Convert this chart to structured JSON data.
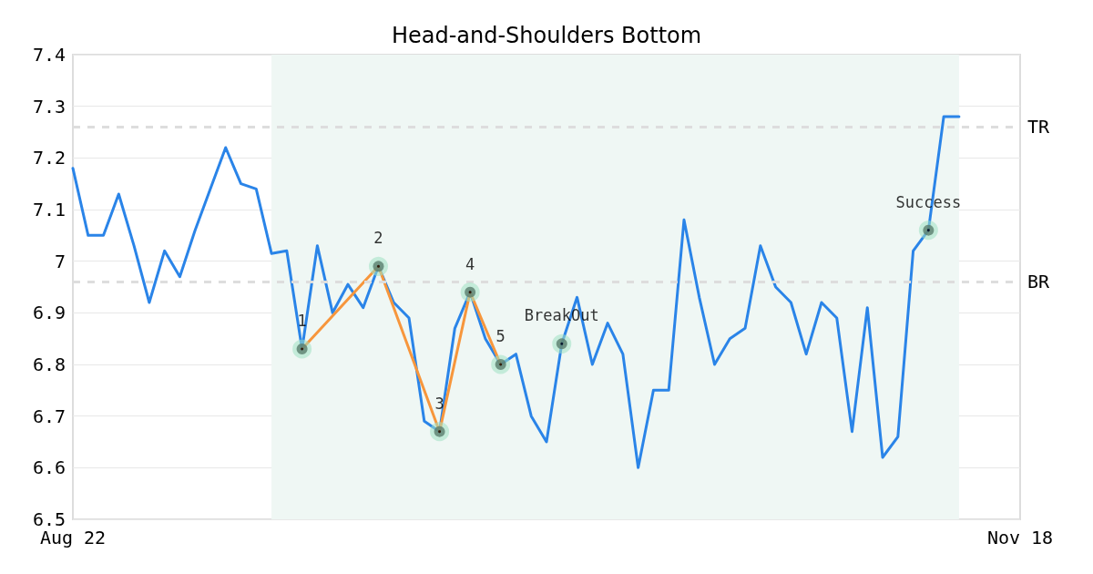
{
  "chart_data": {
    "type": "line",
    "title": "Head-and-Shoulders Bottom",
    "categories": [
      "Aug 22",
      null,
      null,
      null,
      null,
      null,
      null,
      null,
      null,
      null,
      null,
      null,
      null,
      null,
      null,
      null,
      null,
      null,
      null,
      null,
      null,
      null,
      null,
      null,
      null,
      null,
      null,
      null,
      null,
      null,
      null,
      null,
      null,
      null,
      null,
      null,
      null,
      null,
      null,
      null,
      null,
      null,
      null,
      null,
      null,
      null,
      null,
      null,
      null,
      null,
      null,
      null,
      null,
      null,
      null,
      null,
      null,
      null,
      null,
      null,
      null,
      null,
      "Nov 18"
    ],
    "series": [
      {
        "color": "#2a84e8",
        "values": [
          7.18,
          7.05,
          7.05,
          7.13,
          7.03,
          6.92,
          7.02,
          6.97,
          7.06,
          7.14,
          7.22,
          7.15,
          7.14,
          7.015,
          7.02,
          6.83,
          7.03,
          6.9,
          6.955,
          6.91,
          6.99,
          6.92,
          6.89,
          6.69,
          6.67,
          6.87,
          6.94,
          6.85,
          6.8,
          6.82,
          6.7,
          6.65,
          6.84,
          6.93,
          6.8,
          6.88,
          6.82,
          6.6,
          6.75,
          6.75,
          7.08,
          6.93,
          6.8,
          6.85,
          6.87,
          7.03,
          6.95,
          6.92,
          6.82,
          6.92,
          6.89,
          6.67,
          6.91,
          6.62,
          6.66,
          7.02,
          7.06,
          7.28,
          7.28,
          null,
          null,
          null,
          null
        ]
      },
      {
        "color": "#f7963c",
        "values": [
          null,
          null,
          null,
          null,
          null,
          null,
          null,
          null,
          null,
          null,
          null,
          null,
          null,
          null,
          null,
          6.83,
          null,
          null,
          null,
          null,
          6.99,
          null,
          null,
          null,
          6.67,
          null,
          6.94,
          null,
          6.8,
          null,
          null,
          null,
          null,
          null,
          null,
          null,
          null,
          null,
          null,
          null,
          null,
          null,
          null,
          null,
          null,
          null,
          null,
          null,
          null,
          null,
          null,
          null,
          null,
          null,
          null,
          null,
          null,
          null,
          null,
          null,
          null,
          null,
          null
        ]
      },
      {
        "type": "scatter",
        "color": "#000000",
        "values": [
          null,
          null,
          null,
          null,
          null,
          null,
          null,
          null,
          null,
          null,
          null,
          null,
          null,
          null,
          null,
          6.83,
          null,
          null,
          null,
          null,
          6.99,
          null,
          null,
          null,
          6.67,
          null,
          6.94,
          null,
          6.8,
          null,
          null,
          null,
          6.84,
          null,
          null,
          null,
          null,
          null,
          null,
          null,
          null,
          null,
          null,
          null,
          null,
          null,
          null,
          null,
          null,
          null,
          null,
          null,
          null,
          null,
          null,
          null,
          7.06,
          null,
          null,
          null,
          null,
          null,
          null
        ],
        "marker": "circle"
      }
    ],
    "ylim": [
      6.5,
      7.4
    ],
    "yticks": [
      6.5,
      6.6,
      6.7,
      6.8,
      6.9,
      7.0,
      7.1,
      7.2,
      7.3,
      7.4
    ],
    "ref_lines": [
      {
        "axis": "y",
        "value": 7.26,
        "label": "TR",
        "color": "#dddddd",
        "line_style": "dashed"
      },
      {
        "axis": "y",
        "value": 6.96,
        "label": "BR",
        "color": "#dddddd",
        "line_style": "dashed"
      }
    ],
    "annotations": [
      "1",
      "2",
      "3",
      "4",
      "5",
      "BreakOut",
      "Success"
    ],
    "grid": "y",
    "marker": "none",
    "line_style": "solid"
  }
}
